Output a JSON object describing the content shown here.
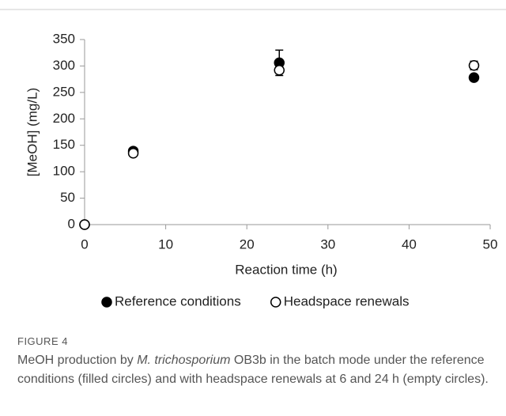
{
  "chart_data": {
    "type": "scatter",
    "xlabel": "Reaction time (h)",
    "ylabel": "[MeOH] (mg/L)",
    "xlim": [
      0,
      50
    ],
    "xticks": [
      0,
      10,
      20,
      30,
      40,
      50
    ],
    "ylim": [
      0,
      350
    ],
    "yticks": [
      0,
      50,
      100,
      150,
      200,
      250,
      300,
      350
    ],
    "grid": false,
    "legend": "bottom",
    "series": [
      {
        "name": "Reference conditions",
        "color": "#000000",
        "filled": true,
        "x": [
          0,
          6,
          24,
          48
        ],
        "values": [
          0,
          139,
          306,
          278
        ],
        "errors": [
          0,
          3,
          24,
          4
        ]
      },
      {
        "name": "Headspace renewals",
        "color": "#000000",
        "filled": false,
        "x": [
          0,
          6,
          24,
          48
        ],
        "values": [
          0,
          135,
          292,
          301
        ],
        "errors": [
          0,
          3,
          5,
          8
        ]
      }
    ]
  },
  "caption": {
    "label": "FIGURE 4",
    "parts": [
      "MeOH production by ",
      "M. trichosporium",
      " OB3b in the batch mode under the reference conditions (filled circles) and with headspace renewals at 6 and 24 h (empty circles)."
    ]
  }
}
